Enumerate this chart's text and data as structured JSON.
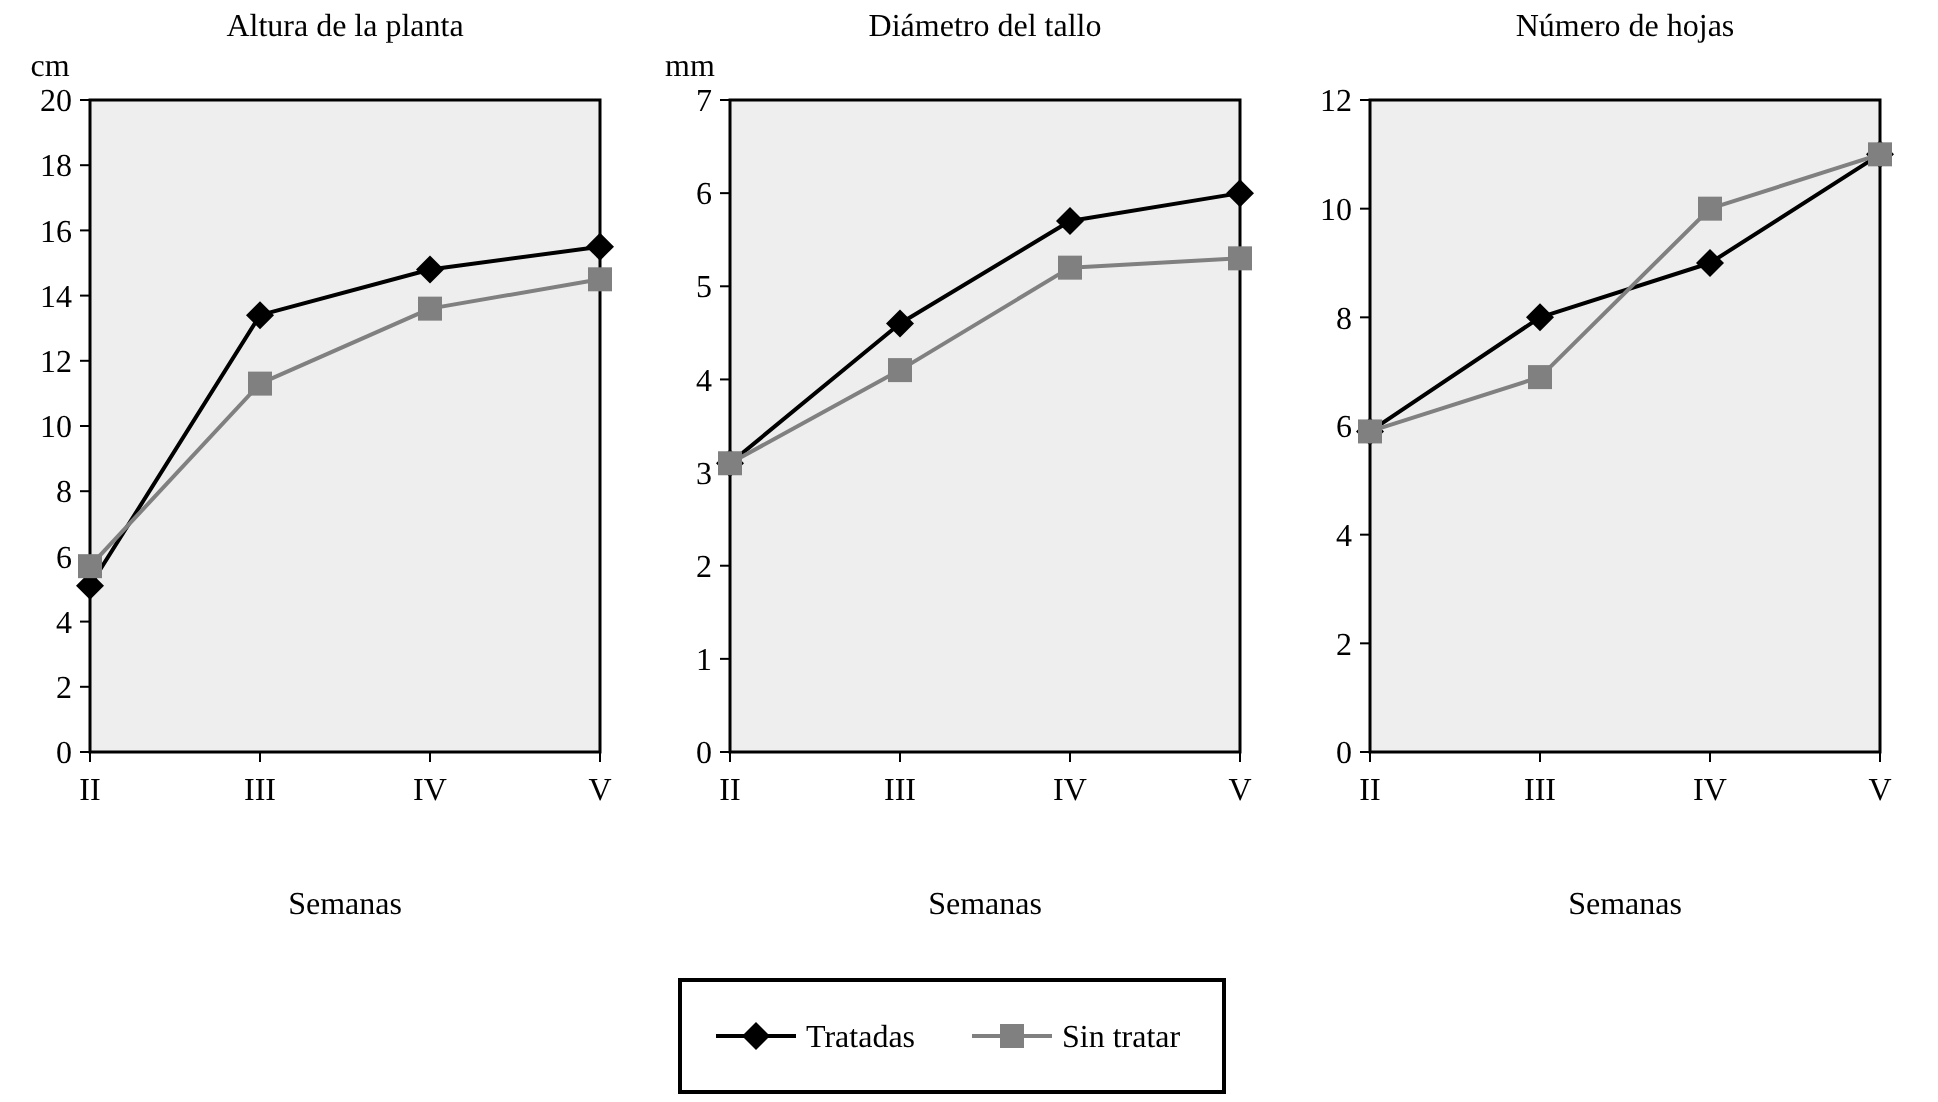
{
  "chart_data": [
    {
      "type": "line",
      "title": "Altura de la planta",
      "ylabel": "cm",
      "xlabel": "Semanas",
      "categories": [
        "II",
        "III",
        "IV",
        "V"
      ],
      "ylim": [
        0,
        20
      ],
      "yticks": [
        0,
        2,
        4,
        6,
        8,
        10,
        12,
        14,
        16,
        18,
        20
      ],
      "grid": false,
      "legend": "bottom",
      "series": [
        {
          "name": "Tratadas",
          "color": "#000000",
          "marker": "diamond",
          "values": [
            5.1,
            13.4,
            14.8,
            15.5
          ]
        },
        {
          "name": "Sin tratar",
          "color": "#808080",
          "marker": "square",
          "values": [
            5.7,
            11.3,
            13.6,
            14.5
          ]
        }
      ]
    },
    {
      "type": "line",
      "title": "Diámetro del tallo",
      "ylabel": "mm",
      "xlabel": "Semanas",
      "categories": [
        "II",
        "III",
        "IV",
        "V"
      ],
      "ylim": [
        0,
        7
      ],
      "yticks": [
        0,
        1,
        2,
        3,
        4,
        5,
        6,
        7
      ],
      "grid": false,
      "series": [
        {
          "color": "#000000",
          "marker": "diamond",
          "values": [
            3.1,
            4.6,
            5.7,
            6.0
          ]
        },
        {
          "color": "#808080",
          "marker": "square",
          "values": [
            3.1,
            4.1,
            5.2,
            5.3
          ]
        }
      ]
    },
    {
      "type": "line",
      "title": "Número de hojas",
      "xlabel": "Semanas",
      "categories": [
        "II",
        "III",
        "IV",
        "V"
      ],
      "ylim": [
        0,
        12
      ],
      "yticks": [
        0,
        2,
        4,
        6,
        8,
        10,
        12
      ],
      "grid": false,
      "series": [
        {
          "color": "#000000",
          "marker": "diamond",
          "values": [
            5.9,
            8,
            9,
            11
          ]
        },
        {
          "color": "#808080",
          "marker": "square",
          "values": [
            5.9,
            6.9,
            10,
            11
          ]
        }
      ]
    }
  ]
}
